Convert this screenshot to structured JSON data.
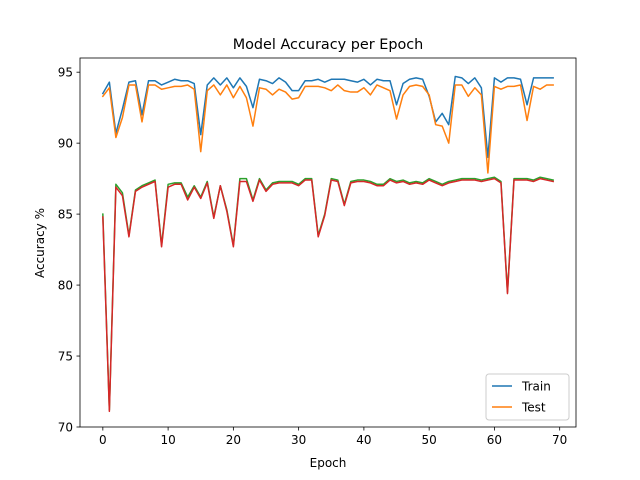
{
  "chart_data": {
    "type": "line",
    "title": "Model Accuracy per Epoch",
    "xlabel": "Epoch",
    "ylabel": "Accuracy %",
    "xlim": [
      -3.5,
      72.5
    ],
    "ylim": [
      70,
      96
    ],
    "xticks": [
      0,
      10,
      20,
      30,
      40,
      50,
      60,
      70
    ],
    "yticks": [
      70,
      75,
      80,
      85,
      90,
      95
    ],
    "grid": false,
    "legend_position": "lower-right",
    "x": [
      0,
      1,
      2,
      3,
      4,
      5,
      6,
      7,
      8,
      9,
      10,
      11,
      12,
      13,
      14,
      15,
      16,
      17,
      18,
      19,
      20,
      21,
      22,
      23,
      24,
      25,
      26,
      27,
      28,
      29,
      30,
      31,
      32,
      33,
      34,
      35,
      36,
      37,
      38,
      39,
      40,
      41,
      42,
      43,
      44,
      45,
      46,
      47,
      48,
      49,
      50,
      51,
      52,
      53,
      54,
      55,
      56,
      57,
      58,
      59,
      60,
      61,
      62,
      63,
      64,
      65,
      66,
      67,
      68,
      69
    ],
    "series": [
      {
        "name": "Train",
        "group": "upper",
        "color": "#1f77b4",
        "values": [
          93.5,
          94.3,
          90.7,
          92.4,
          94.3,
          94.4,
          92.0,
          94.4,
          94.4,
          94.1,
          94.3,
          94.5,
          94.4,
          94.4,
          94.2,
          90.6,
          94.1,
          94.6,
          94.1,
          94.6,
          93.9,
          94.6,
          94.0,
          92.5,
          94.5,
          94.4,
          94.2,
          94.6,
          94.3,
          93.7,
          93.7,
          94.4,
          94.4,
          94.5,
          94.3,
          94.5,
          94.5,
          94.5,
          94.4,
          94.3,
          94.5,
          94.1,
          94.5,
          94.4,
          94.4,
          92.7,
          94.2,
          94.5,
          94.6,
          94.5,
          93.3,
          91.5,
          92.1,
          91.3,
          94.7,
          94.6,
          94.2,
          94.6,
          93.9,
          89.0,
          94.6,
          94.3,
          94.6,
          94.6,
          94.5,
          92.7,
          94.6,
          94.6,
          94.6,
          94.6
        ]
      },
      {
        "name": "Test",
        "group": "upper",
        "color": "#ff7f0e",
        "values": [
          93.3,
          93.9,
          90.4,
          91.8,
          94.1,
          94.1,
          91.5,
          94.1,
          94.1,
          93.8,
          93.9,
          94.0,
          94.0,
          94.1,
          93.8,
          89.4,
          93.7,
          94.1,
          93.4,
          94.1,
          93.2,
          94.0,
          93.2,
          91.2,
          93.9,
          93.8,
          93.4,
          93.8,
          93.6,
          93.1,
          93.2,
          94.0,
          94.0,
          94.0,
          93.9,
          93.7,
          94.1,
          93.7,
          93.6,
          93.6,
          93.9,
          93.4,
          94.1,
          93.9,
          93.7,
          91.7,
          93.4,
          94.0,
          94.1,
          94.0,
          93.4,
          91.3,
          91.2,
          90.0,
          94.1,
          94.1,
          93.3,
          93.9,
          93.4,
          87.9,
          94.0,
          93.8,
          94.0,
          94.0,
          94.1,
          91.6,
          94.0,
          93.8,
          94.1,
          94.1
        ]
      },
      {
        "name": "",
        "group": "lower",
        "color": "#2ca02c",
        "values": [
          85.0,
          71.2,
          87.1,
          86.5,
          83.5,
          86.7,
          87.0,
          87.2,
          87.4,
          82.8,
          87.1,
          87.2,
          87.2,
          86.2,
          87.0,
          86.2,
          87.3,
          84.8,
          87.0,
          85.3,
          82.8,
          87.5,
          87.5,
          86.0,
          87.5,
          86.7,
          87.2,
          87.3,
          87.3,
          87.3,
          87.1,
          87.5,
          87.5,
          83.5,
          85.0,
          87.5,
          87.4,
          85.7,
          87.3,
          87.4,
          87.4,
          87.3,
          87.1,
          87.1,
          87.5,
          87.3,
          87.4,
          87.2,
          87.3,
          87.2,
          87.5,
          87.3,
          87.1,
          87.3,
          87.4,
          87.5,
          87.5,
          87.5,
          87.4,
          87.5,
          87.6,
          87.3,
          79.5,
          87.5,
          87.5,
          87.5,
          87.4,
          87.6,
          87.5,
          87.4
        ]
      },
      {
        "name": "",
        "group": "lower",
        "color": "#d62728",
        "values": [
          84.8,
          71.1,
          86.9,
          86.3,
          83.4,
          86.6,
          86.9,
          87.1,
          87.3,
          82.7,
          86.9,
          87.1,
          87.1,
          86.0,
          86.9,
          86.1,
          87.2,
          84.7,
          87.0,
          85.2,
          82.7,
          87.3,
          87.3,
          85.9,
          87.4,
          86.6,
          87.1,
          87.2,
          87.2,
          87.2,
          87.0,
          87.4,
          87.4,
          83.4,
          84.9,
          87.4,
          87.3,
          85.6,
          87.2,
          87.3,
          87.3,
          87.2,
          87.0,
          87.0,
          87.4,
          87.2,
          87.3,
          87.1,
          87.2,
          87.1,
          87.4,
          87.2,
          87.0,
          87.2,
          87.3,
          87.4,
          87.4,
          87.4,
          87.3,
          87.4,
          87.5,
          87.2,
          79.4,
          87.4,
          87.4,
          87.4,
          87.3,
          87.5,
          87.4,
          87.3
        ]
      }
    ],
    "legend": [
      "Train",
      "Test"
    ]
  }
}
